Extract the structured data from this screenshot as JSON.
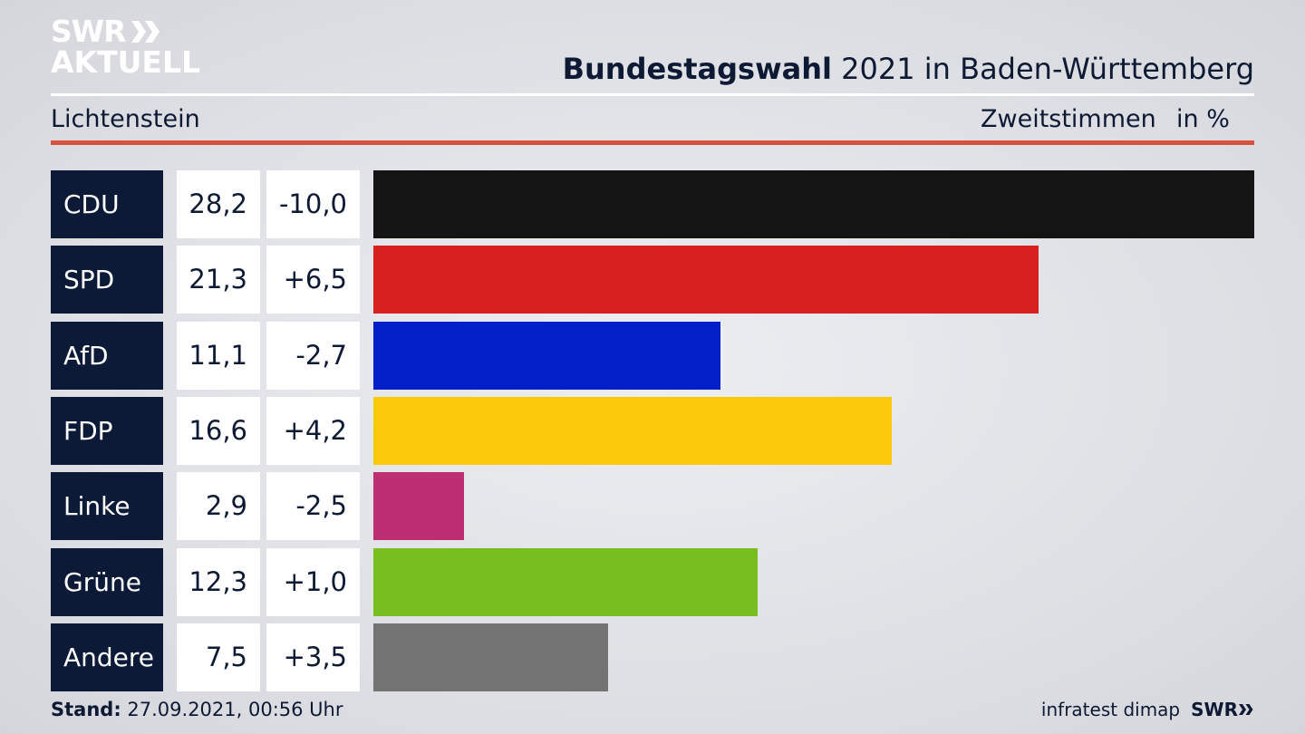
{
  "logo": {
    "line1": "SWR",
    "line2": "AKTUELL"
  },
  "header": {
    "title_bold": "Bundestagswahl",
    "title_rest": " 2021 in Baden-Württemberg",
    "region": "Lichtenstein",
    "measure": "Zweitstimmen",
    "unit": "in %"
  },
  "footer": {
    "stand_label": "Stand:",
    "stand_value": " 27.09.2021, 00:56 Uhr",
    "source": "infratest dimap",
    "brand": "SWR"
  },
  "chart_data": {
    "type": "bar",
    "orientation": "horizontal",
    "categories": [
      "CDU",
      "SPD",
      "AfD",
      "FDP",
      "Linke",
      "Grüne",
      "Andere"
    ],
    "values": [
      28.2,
      21.3,
      11.1,
      16.6,
      2.9,
      12.3,
      7.5
    ],
    "value_labels": [
      "28,2",
      "21,3",
      "11,1",
      "16,6",
      "2,9",
      "12,3",
      "7,5"
    ],
    "change_labels": [
      "-10,0",
      "+6,5",
      "-2,7",
      "+4,2",
      "-2,5",
      "+1,0",
      "+3,5"
    ],
    "changes": [
      -10.0,
      6.5,
      -2.7,
      4.2,
      -2.5,
      1.0,
      3.5
    ],
    "colors": [
      "#141414",
      "#d8201e",
      "#0320c8",
      "#fcca0a",
      "#be2e72",
      "#78be1e",
      "#737373"
    ],
    "xlim": [
      0,
      28.2
    ]
  }
}
